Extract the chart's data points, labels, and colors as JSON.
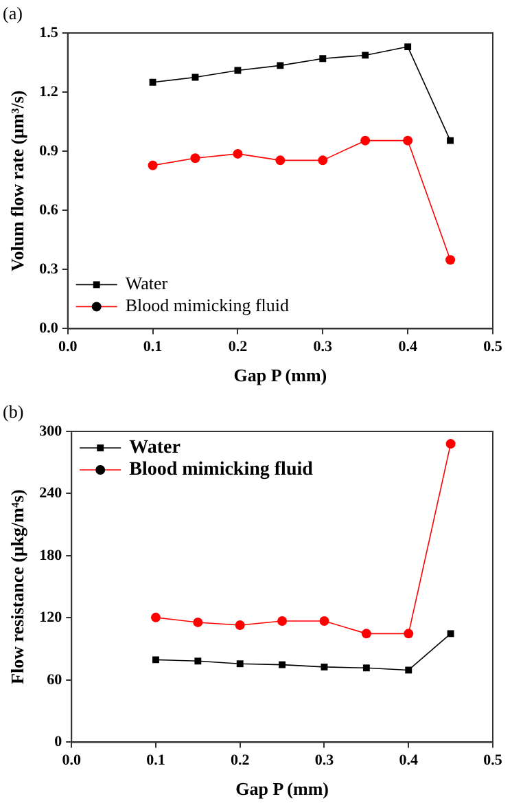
{
  "chart_data": [
    {
      "type": "line",
      "title": "(a)",
      "xlabel": "Gap P (mm)",
      "ylabel": "Volum flow rate (μm³/s)",
      "x": [
        0.1,
        0.15,
        0.2,
        0.25,
        0.3,
        0.35,
        0.4,
        0.45
      ],
      "series": [
        {
          "name": "Water",
          "color": "#000000",
          "marker": "square",
          "values": [
            1.25,
            1.275,
            1.31,
            1.335,
            1.37,
            1.387,
            1.43,
            0.954
          ]
        },
        {
          "name": "Blood mimicking fluid",
          "color": "#ff0000",
          "marker": "circle",
          "values": [
            0.828,
            0.865,
            0.887,
            0.854,
            0.854,
            0.954,
            0.954,
            0.349
          ]
        }
      ],
      "xlim": [
        0,
        0.5
      ],
      "xticks": [
        {
          "value": 0,
          "label": "0.0"
        },
        0.1,
        0.2,
        0.3,
        0.4,
        0.5
      ],
      "ylim": [
        0,
        1.5
      ],
      "yticks": [
        {
          "value": 0,
          "label": "0.0"
        },
        0.3,
        0.6,
        0.9,
        1.2,
        1.5
      ],
      "grid": false,
      "legend": "bottom left",
      "line_style": "solid"
    },
    {
      "type": "line",
      "title": "(b)",
      "xlabel": "Gap P (mm)",
      "ylabel": "Flow resistance (μkg/m⁴s)",
      "x": [
        0.1,
        0.15,
        0.2,
        0.25,
        0.3,
        0.35,
        0.4,
        0.45
      ],
      "series": [
        {
          "name": "Water",
          "color": "#000000",
          "marker": "square",
          "values": [
            79.6,
            78.3,
            75.7,
            74.8,
            72.6,
            71.7,
            69.6,
            104.8
          ]
        },
        {
          "name": "Blood mimicking fluid",
          "color": "#ff0000",
          "marker": "circle",
          "values": [
            120.4,
            115.7,
            113,
            117,
            117,
            104.8,
            104.8,
            288
          ]
        }
      ],
      "xlim": [
        0,
        0.5
      ],
      "xticks": [
        {
          "value": 0,
          "label": "0.0"
        },
        0.1,
        0.2,
        0.3,
        0.4,
        0.5
      ],
      "ylim": [
        0,
        300
      ],
      "yticks": [
        0,
        60,
        120,
        180,
        240,
        300
      ],
      "grid": false,
      "legend": "top left",
      "line_style": "solid"
    }
  ]
}
